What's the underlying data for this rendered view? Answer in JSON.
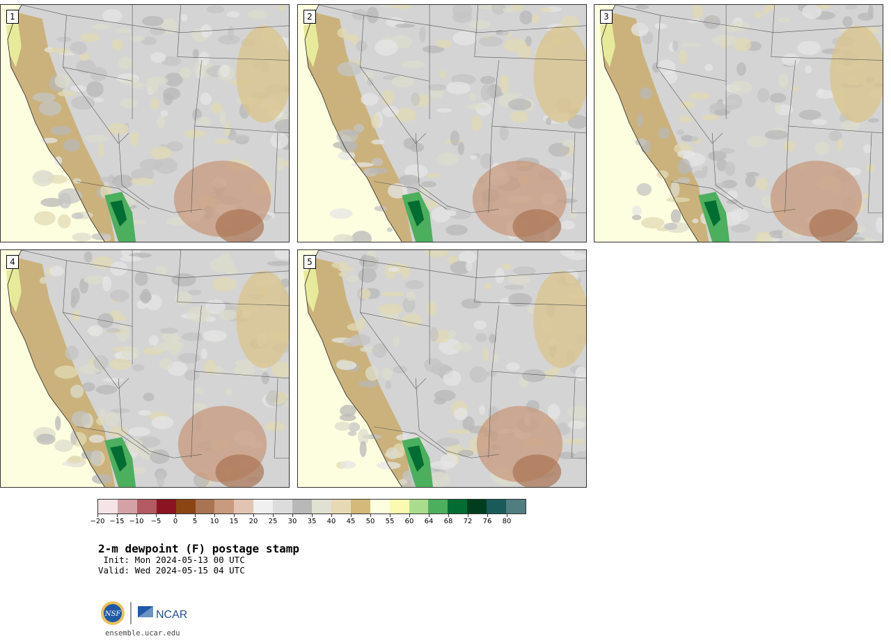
{
  "panels": [
    {
      "label": "1"
    },
    {
      "label": "2"
    },
    {
      "label": "3"
    },
    {
      "label": "4"
    },
    {
      "label": "5"
    }
  ],
  "colorbar": {
    "ticks": [
      "−20",
      "−15",
      "−10",
      "−5",
      "0",
      "5",
      "10",
      "15",
      "20",
      "25",
      "30",
      "35",
      "40",
      "45",
      "50",
      "55",
      "60",
      "64",
      "68",
      "72",
      "76",
      "80"
    ],
    "colors": [
      "#f5e4e6",
      "#d4a1a6",
      "#b35a62",
      "#8a1520",
      "#8b4513",
      "#a97452",
      "#c89a7e",
      "#e1c4b1",
      "#f0f0f0",
      "#dcdcdc",
      "#b8b8b8",
      "#e1e1d2",
      "#e7d9b4",
      "#d4b97a",
      "#fdfde0",
      "#fafab0",
      "#a9dc8c",
      "#4caf5e",
      "#006d32",
      "#003d1e",
      "#1a5a5a",
      "#4f7d80"
    ]
  },
  "text": {
    "title": "2-m dewpoint (F) postage stamp",
    "init": " Init: Mon 2024-05-13 00 UTC",
    "valid": "Valid: Wed 2024-05-15 04 UTC",
    "website": "ensemble.ucar.edu"
  },
  "logos": {
    "nsf": "NSF",
    "ncar": "NCAR"
  }
}
